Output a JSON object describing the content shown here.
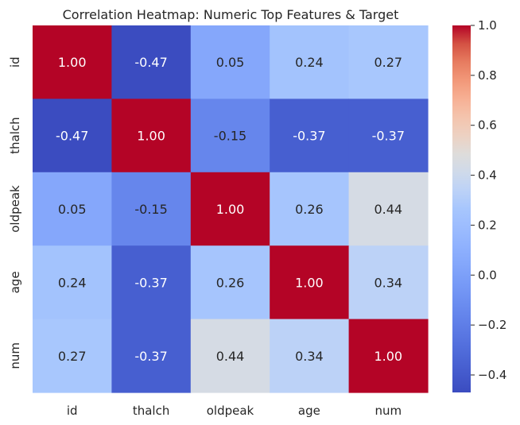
{
  "chart_data": {
    "type": "heatmap",
    "title": "Correlation Heatmap: Numeric Top Features & Target",
    "x_categories": [
      "id",
      "thalch",
      "oldpeak",
      "age",
      "num"
    ],
    "y_categories": [
      "id",
      "thalch",
      "oldpeak",
      "age",
      "num"
    ],
    "values": [
      [
        1.0,
        -0.47,
        0.05,
        0.24,
        0.27
      ],
      [
        -0.47,
        1.0,
        -0.15,
        -0.37,
        -0.37
      ],
      [
        0.05,
        -0.15,
        1.0,
        0.26,
        0.44
      ],
      [
        0.24,
        -0.37,
        0.26,
        1.0,
        0.34
      ],
      [
        0.27,
        -0.37,
        0.44,
        0.34,
        1.0
      ]
    ],
    "value_format": "0.00",
    "colormap": "coolwarm",
    "color_range": [
      -0.47,
      1.0
    ],
    "colorbar": {
      "ticks": [
        -0.4,
        -0.2,
        0.0,
        0.2,
        0.4,
        0.6,
        0.8,
        1.0
      ],
      "tick_labels": [
        "−0.4",
        "−0.2",
        "0.0",
        "0.2",
        "0.4",
        "0.6",
        "0.8",
        "1.0"
      ]
    },
    "grid": false,
    "legend": "colorbar-right"
  }
}
